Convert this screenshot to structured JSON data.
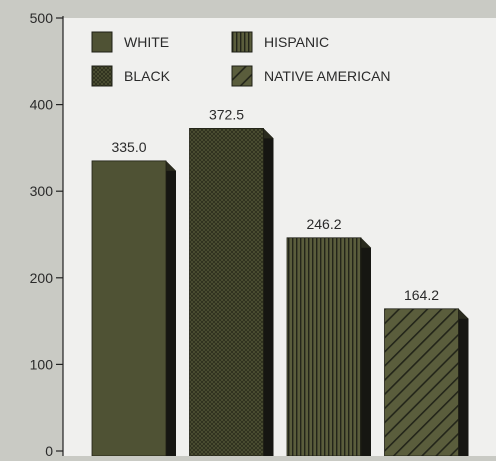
{
  "chart_data": {
    "type": "bar",
    "categories": [
      "WHITE",
      "BLACK",
      "HISPANIC",
      "NATIVE AMERICAN"
    ],
    "values": [
      335.0,
      372.5,
      246.2,
      164.2
    ],
    "value_labels": [
      "335.0",
      "372.5",
      "246.2",
      "164.2"
    ],
    "ylim": [
      0,
      500
    ],
    "yticks": [
      0,
      100,
      200,
      300,
      400,
      500
    ],
    "legend": [
      {
        "label": "WHITE",
        "pattern": "solid"
      },
      {
        "label": "HISPANIC",
        "pattern": "vertical-stripes"
      },
      {
        "label": "BLACK",
        "pattern": "crosshatch"
      },
      {
        "label": "NATIVE AMERICAN",
        "pattern": "diagonal-stripes"
      }
    ],
    "legend_position": "top",
    "grid": false,
    "colors": {
      "background": "#c9cac4",
      "plot_area": "#f0f0ee",
      "bar": "#4f5234",
      "bar_side": "#161612",
      "axis": "#222222"
    }
  }
}
